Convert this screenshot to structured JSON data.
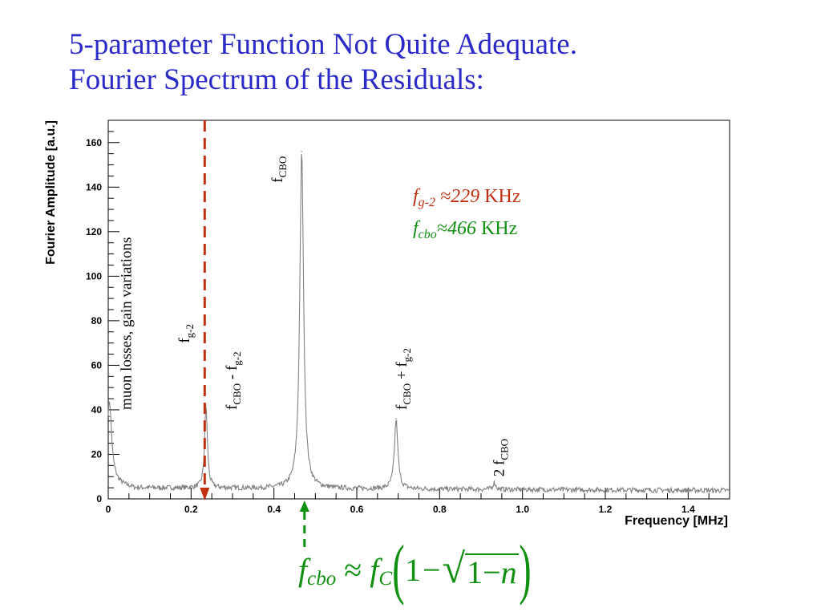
{
  "slide": {
    "title_line1": "5-parameter Function Not Quite Adequate.",
    "title_line2": "Fourier Spectrum of the Residuals:"
  },
  "annotations": {
    "fg2_main": "f",
    "fg2_sub": "g-2",
    "fg2_rest": " ≈229",
    "fg2_unit": " KHz",
    "fcbo_main": "f",
    "fcbo_sub": "cbo",
    "fcbo_rest": "≈466",
    "fcbo_unit": " KHz",
    "fg2_color": "#c03010",
    "fcbo_color": "#109010"
  },
  "formula": {
    "f1": "f",
    "f1_sub": "cbo",
    "approx": "≈",
    "f2": "f",
    "f2_sub": "C",
    "one": "1",
    "minus": "−",
    "one2": "1",
    "minus2": "−",
    "n": "n"
  },
  "markers": {
    "fg2_freq_mhz": 0.229,
    "fcbo_freq_mhz": 0.466,
    "fg2_color": "#c03010",
    "fcbo_color": "#109010"
  },
  "chart_data": {
    "type": "line",
    "xlabel": "Frequency [MHz]",
    "ylabel": "Fourier Amplitude [a.u.]",
    "xlim": [
      0,
      1.5
    ],
    "ylim": [
      0,
      170
    ],
    "xticks": [
      0,
      0.2,
      0.4,
      0.6,
      0.8,
      1.0,
      1.2,
      1.4
    ],
    "xtick_labels": [
      "0",
      "0.2",
      "0.4",
      "0.6",
      "0.8",
      "1.0",
      "1.2",
      "1.4"
    ],
    "yticks": [
      0,
      20,
      40,
      60,
      80,
      100,
      120,
      140,
      160
    ],
    "ytick_labels": [
      "0",
      "20",
      "40",
      "60",
      "80",
      "100",
      "120",
      "140",
      "160"
    ],
    "grid": false,
    "line_color": "#808080",
    "peaks": [
      {
        "x": 0.003,
        "y": 37
      },
      {
        "x": 0.236,
        "y": 42
      },
      {
        "x": 0.467,
        "y": 156
      },
      {
        "x": 0.695,
        "y": 36
      },
      {
        "x": 0.932,
        "y": 8
      }
    ],
    "peak_labels": [
      {
        "main": "muon losses, gain variations",
        "sub": "",
        "tail": "",
        "x": 0.055,
        "y": 40
      },
      {
        "main": "f",
        "sub": "g-2",
        "tail": "",
        "x": 0.195,
        "y": 70
      },
      {
        "main": "f",
        "sub": "CBO",
        "tail": " - f",
        "sub2": "g-2",
        "x": 0.31,
        "y": 40
      },
      {
        "main": "f",
        "sub": "CBO",
        "tail": "",
        "x": 0.42,
        "y": 142
      },
      {
        "main": "f",
        "sub": "CBO",
        "tail": " + f",
        "sub2": "g-2",
        "x": 0.72,
        "y": 40
      },
      {
        "main": "2 f",
        "sub": "CBO",
        "tail": "",
        "x": 0.955,
        "y": 10
      }
    ]
  }
}
